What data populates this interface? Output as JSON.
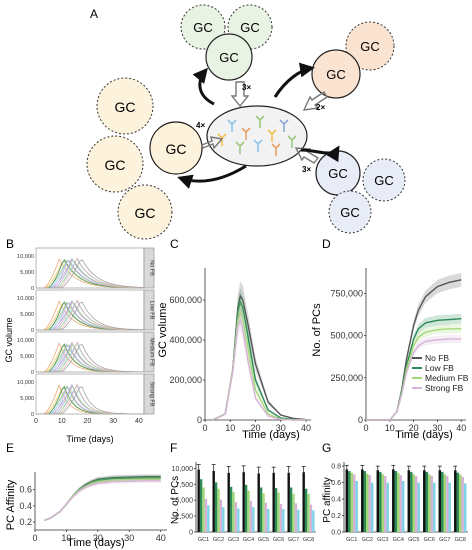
{
  "panels": {
    "A": {
      "label": "A",
      "gc_text": "GC",
      "multipliers": [
        "3×",
        "2×",
        "3×",
        "4×"
      ],
      "colors": {
        "green": "#e9f3e4",
        "peach": "#fbe3d1",
        "blue": "#e8ecf6",
        "yellow": "#fdf2dc",
        "dish": "#f2f2f2"
      }
    },
    "B": {
      "label": "B",
      "ylabel": "GC volume",
      "xlabel": "Time (days)",
      "strips": [
        "No FB",
        "Low FB",
        "Medium FB",
        "Strong FB"
      ],
      "yticks": [
        "10,000",
        "5,000",
        "0"
      ],
      "xticks": [
        "0",
        "10",
        "20",
        "30",
        "40"
      ]
    },
    "C": {
      "label": "C",
      "ylabel": "GC volume",
      "xlabel": "Time (days)",
      "yticks": [
        "600,000",
        "400,000",
        "200,000",
        "0"
      ],
      "xticks": [
        "0",
        "10",
        "20",
        "30",
        "40"
      ]
    },
    "D": {
      "label": "D",
      "ylabel": "No. of PCs",
      "xlabel": "Time (days)",
      "yticks": [
        "750,000",
        "500,000",
        "250,000",
        "0"
      ],
      "xticks": [
        "0",
        "10",
        "20",
        "30",
        "40"
      ],
      "legend": [
        "No FB",
        "Low FB",
        "Medium FB",
        "Strong FB"
      ]
    },
    "E": {
      "label": "E",
      "ylabel": "PC Affinity",
      "xlabel": "Time (days)",
      "yticks": [
        "0.6",
        "0.4",
        "0.2"
      ],
      "xticks": [
        "0",
        "10",
        "20",
        "30",
        "40"
      ]
    },
    "F": {
      "label": "F",
      "ylabel": "No. of PCs",
      "yticks": [
        "10,000",
        "7,500",
        "5,000",
        "2,500",
        "0"
      ],
      "xticks": [
        "GC1",
        "GC2",
        "GC3",
        "GC4",
        "GC5",
        "GC6",
        "GC7",
        "GC8"
      ]
    },
    "G": {
      "label": "G",
      "ylabel": "PC affinity",
      "yticks": [
        "0.8",
        "0.6",
        "0.4",
        "0.2",
        "0.0"
      ],
      "xticks": [
        "GC1",
        "GC2",
        "GC3",
        "GC4",
        "GC5",
        "GC6",
        "GC7",
        "GC8"
      ]
    }
  },
  "chart_data": [
    {
      "panel": "C",
      "type": "line",
      "xlim": [
        0,
        42
      ],
      "ylim": [
        0,
        760000
      ],
      "series": [
        {
          "color": "#555555",
          "x": [
            3,
            8,
            11,
            13,
            14,
            15,
            17,
            20,
            25,
            30,
            35,
            40
          ],
          "y": [
            0,
            30000,
            250000,
            560000,
            620000,
            600000,
            480000,
            280000,
            90000,
            25000,
            8000,
            2000
          ]
        },
        {
          "color": "#2e8b57",
          "x": [
            3,
            8,
            11,
            13,
            14,
            15,
            17,
            20,
            25,
            30,
            35,
            40
          ],
          "y": [
            0,
            30000,
            250000,
            540000,
            590000,
            560000,
            420000,
            200000,
            50000,
            10000,
            3000,
            0
          ]
        },
        {
          "color": "#a3d977",
          "x": [
            3,
            8,
            11,
            13,
            14,
            15,
            17,
            20,
            25,
            30,
            35,
            40
          ],
          "y": [
            0,
            30000,
            250000,
            500000,
            540000,
            500000,
            360000,
            150000,
            30000,
            5000,
            0,
            0
          ]
        },
        {
          "color": "#d6b3d6",
          "x": [
            3,
            8,
            11,
            13,
            14,
            15,
            17,
            20,
            25,
            30,
            35,
            40
          ],
          "y": [
            0,
            30000,
            240000,
            470000,
            500000,
            450000,
            300000,
            110000,
            20000,
            3000,
            0,
            0
          ]
        }
      ]
    },
    {
      "panel": "D",
      "type": "line",
      "xlim": [
        0,
        42
      ],
      "ylim": [
        0,
        900000
      ],
      "series": [
        {
          "name": "No FB",
          "color": "#555555",
          "x": [
            0,
            10,
            13,
            15,
            17,
            20,
            22,
            25,
            30,
            35,
            40
          ],
          "y": [
            0,
            0,
            50000,
            180000,
            360000,
            560000,
            650000,
            730000,
            790000,
            815000,
            830000
          ]
        },
        {
          "name": "Low FB",
          "color": "#2e8b57",
          "x": [
            0,
            10,
            13,
            15,
            17,
            20,
            22,
            25,
            30,
            35,
            40
          ],
          "y": [
            0,
            0,
            50000,
            170000,
            320000,
            480000,
            540000,
            575000,
            590000,
            595000,
            600000
          ]
        },
        {
          "name": "Medium FB",
          "color": "#a3d977",
          "x": [
            0,
            10,
            13,
            15,
            17,
            20,
            22,
            25,
            30,
            35,
            40
          ],
          "y": [
            0,
            0,
            50000,
            160000,
            300000,
            440000,
            490000,
            520000,
            535000,
            540000,
            540000
          ]
        },
        {
          "name": "Strong FB",
          "color": "#d6b3d6",
          "x": [
            0,
            10,
            13,
            15,
            17,
            20,
            22,
            25,
            30,
            35,
            40
          ],
          "y": [
            0,
            0,
            50000,
            150000,
            280000,
            400000,
            440000,
            465000,
            475000,
            480000,
            480000
          ]
        }
      ]
    },
    {
      "panel": "E",
      "type": "line",
      "xlim": [
        0,
        42
      ],
      "ylim": [
        0.1,
        0.82
      ],
      "series": [
        {
          "color": "#555555",
          "x": [
            3,
            5,
            8,
            10,
            12,
            14,
            16,
            18,
            20,
            25,
            30,
            35,
            40
          ],
          "y": [
            0.22,
            0.25,
            0.33,
            0.42,
            0.52,
            0.6,
            0.66,
            0.7,
            0.73,
            0.75,
            0.755,
            0.76,
            0.76
          ]
        },
        {
          "color": "#2e8b57",
          "x": [
            3,
            5,
            8,
            10,
            12,
            14,
            16,
            18,
            20,
            25,
            30,
            35,
            40
          ],
          "y": [
            0.22,
            0.25,
            0.33,
            0.42,
            0.52,
            0.6,
            0.65,
            0.69,
            0.72,
            0.74,
            0.745,
            0.75,
            0.75
          ]
        },
        {
          "color": "#a3d977",
          "x": [
            3,
            5,
            8,
            10,
            12,
            14,
            16,
            18,
            20,
            25,
            30,
            35,
            40
          ],
          "y": [
            0.22,
            0.25,
            0.33,
            0.42,
            0.52,
            0.59,
            0.64,
            0.68,
            0.7,
            0.72,
            0.725,
            0.73,
            0.73
          ]
        },
        {
          "color": "#d6b3d6",
          "x": [
            3,
            5,
            8,
            10,
            12,
            14,
            16,
            18,
            20,
            25,
            30,
            35,
            40
          ],
          "y": [
            0.22,
            0.25,
            0.33,
            0.42,
            0.51,
            0.58,
            0.63,
            0.66,
            0.68,
            0.7,
            0.705,
            0.71,
            0.71
          ]
        }
      ]
    },
    {
      "panel": "F",
      "type": "bar",
      "ylim": [
        0,
        11000
      ],
      "categories": [
        "GC1",
        "GC2",
        "GC3",
        "GC4",
        "GC5",
        "GC6",
        "GC7",
        "GC8"
      ],
      "series": [
        {
          "color": "#111111",
          "values": [
            9800,
            9600,
            9300,
            9400,
            9200,
            9300,
            9300,
            9400
          ]
        },
        {
          "color": "#2e8b57",
          "values": [
            8300,
            7800,
            7100,
            7400,
            7000,
            6900,
            7000,
            6800
          ]
        },
        {
          "color": "#a3d977",
          "values": [
            7000,
            6800,
            6300,
            6500,
            6100,
            6200,
            6000,
            6000
          ]
        },
        {
          "color": "#d6b3d6",
          "values": [
            5200,
            5100,
            4700,
            4900,
            4600,
            4400,
            4500,
            4300
          ]
        },
        {
          "color": "#7fd3e6",
          "values": [
            4200,
            3900,
            3700,
            3900,
            3600,
            3600,
            3500,
            3400
          ]
        }
      ],
      "errors": [
        800,
        1000,
        1000,
        1000,
        1000,
        900,
        1000,
        900
      ]
    },
    {
      "panel": "G",
      "type": "bar",
      "ylim": [
        0,
        0.85
      ],
      "categories": [
        "GC1",
        "GC2",
        "GC3",
        "GC4",
        "GC5",
        "GC6",
        "GC7",
        "GC8"
      ],
      "series": [
        {
          "color": "#111111",
          "values": [
            0.76,
            0.76,
            0.75,
            0.76,
            0.75,
            0.75,
            0.75,
            0.75
          ]
        },
        {
          "color": "#2e8b57",
          "values": [
            0.74,
            0.74,
            0.73,
            0.74,
            0.73,
            0.73,
            0.73,
            0.72
          ]
        },
        {
          "color": "#a3d977",
          "values": [
            0.72,
            0.71,
            0.7,
            0.72,
            0.7,
            0.7,
            0.7,
            0.7
          ]
        },
        {
          "color": "#d6b3d6",
          "values": [
            0.7,
            0.69,
            0.68,
            0.69,
            0.68,
            0.68,
            0.68,
            0.67
          ]
        },
        {
          "color": "#7fd3e6",
          "values": [
            0.62,
            0.6,
            0.6,
            0.62,
            0.6,
            0.6,
            0.6,
            0.59
          ]
        }
      ],
      "errors": [
        0.05,
        0.05,
        0.05,
        0.05,
        0.05,
        0.05,
        0.05,
        0.05
      ]
    }
  ]
}
